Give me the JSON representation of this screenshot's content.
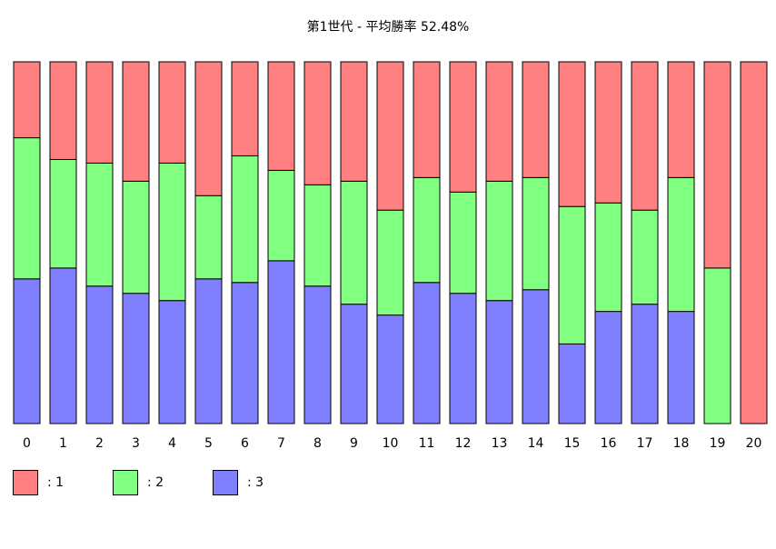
{
  "chart_data": {
    "type": "bar",
    "stacked": true,
    "normalized": true,
    "title": "第1世代 - 平均勝率 52.48%",
    "categories": [
      "0",
      "1",
      "2",
      "3",
      "4",
      "5",
      "6",
      "7",
      "8",
      "9",
      "10",
      "11",
      "12",
      "13",
      "14",
      "15",
      "16",
      "17",
      "18",
      "19",
      "20"
    ],
    "series": [
      {
        "name": ": 3",
        "color": "#8080ff",
        "values": [
          0.4,
          0.43,
          0.38,
          0.36,
          0.34,
          0.4,
          0.39,
          0.45,
          0.38,
          0.33,
          0.3,
          0.39,
          0.36,
          0.34,
          0.37,
          0.22,
          0.31,
          0.33,
          0.31,
          0.0,
          0.0
        ]
      },
      {
        "name": ": 2",
        "color": "#80ff80",
        "values": [
          0.39,
          0.3,
          0.34,
          0.31,
          0.38,
          0.23,
          0.35,
          0.25,
          0.28,
          0.34,
          0.29,
          0.29,
          0.28,
          0.33,
          0.31,
          0.38,
          0.3,
          0.26,
          0.37,
          0.43,
          0.0
        ]
      },
      {
        "name": ": 1",
        "color": "#ff8080",
        "values": [
          0.21,
          0.27,
          0.28,
          0.33,
          0.28,
          0.37,
          0.26,
          0.3,
          0.34,
          0.33,
          0.41,
          0.32,
          0.36,
          0.33,
          0.32,
          0.4,
          0.39,
          0.41,
          0.32,
          0.57,
          1.0
        ]
      }
    ],
    "legend": [
      {
        "label": ": 1",
        "color": "#ff8080"
      },
      {
        "label": ": 2",
        "color": "#80ff80"
      },
      {
        "label": ": 3",
        "color": "#8080ff"
      }
    ],
    "ylim": [
      0,
      1
    ],
    "grid": false,
    "legend_position": "bottom-left"
  }
}
